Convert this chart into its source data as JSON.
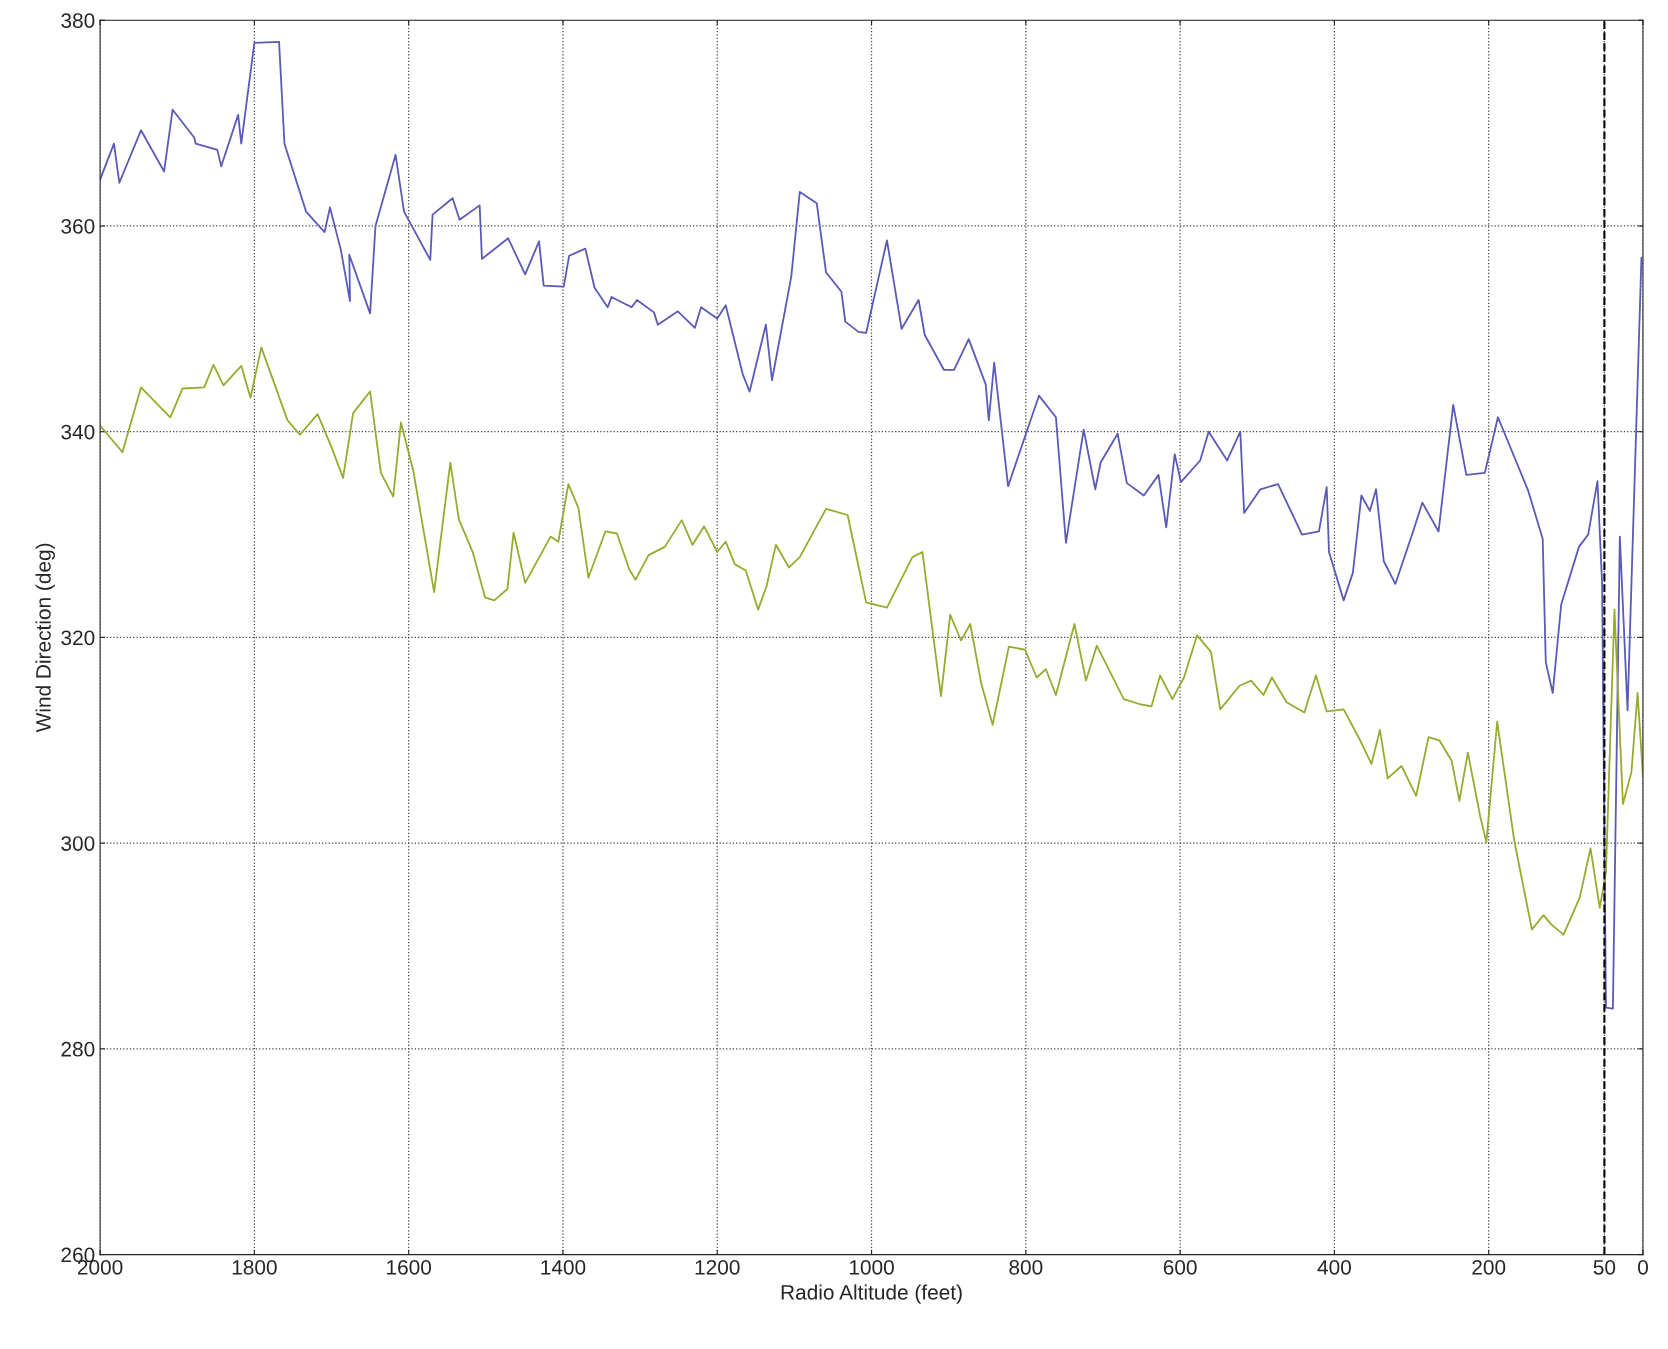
{
  "chart_data": {
    "type": "line",
    "xlabel": "Radio Altitude (feet)",
    "ylabel": "Wind Direction (deg)",
    "xlim": [
      2000,
      0
    ],
    "ylim": [
      260,
      380
    ],
    "xticks": [
      2000,
      1800,
      1600,
      1400,
      1200,
      1000,
      800,
      600,
      400,
      200,
      50,
      0
    ],
    "yticks": [
      260,
      280,
      300,
      320,
      340,
      360,
      380
    ],
    "grid": true,
    "ref_lines": [
      {
        "axis": "x",
        "value": 50,
        "color": "#000000",
        "line_style": "dashed"
      }
    ],
    "series": [
      {
        "color": "#5a5ab8",
        "x": [
          2000,
          1982,
          1975,
          1947,
          1917,
          1906,
          1878,
          1876,
          1848,
          1843,
          1821,
          1817,
          1800,
          1768,
          1761,
          1733,
          1709,
          1702,
          1688,
          1676,
          1677,
          1650,
          1643,
          1617,
          1606,
          1572,
          1569,
          1543,
          1534,
          1508,
          1505,
          1471,
          1449,
          1431,
          1425,
          1399,
          1392,
          1371,
          1359,
          1342,
          1337,
          1311,
          1304,
          1282,
          1277,
          1251,
          1229,
          1221,
          1200,
          1189,
          1167,
          1158,
          1137,
          1129,
          1104,
          1093,
          1071,
          1059,
          1039,
          1034,
          1017,
          1007,
          980,
          961,
          939,
          931,
          906,
          893,
          874,
          852,
          848,
          841,
          823,
          783,
          761,
          748,
          725,
          710,
          703,
          681,
          669,
          647,
          628,
          618,
          607,
          599,
          574,
          563,
          539,
          522,
          517,
          496,
          473,
          442,
          420,
          410,
          407,
          388,
          376,
          365,
          354,
          346,
          336,
          321,
          298,
          286,
          265,
          246,
          229,
          205,
          188,
          149,
          130,
          126,
          117,
          106,
          83,
          71,
          59,
          53,
          48,
          39,
          30,
          20,
          2
        ],
        "values": [
          364.5,
          368,
          364.2,
          369.3,
          365.3,
          371.3,
          368.6,
          368,
          367.4,
          365.8,
          370.8,
          368,
          377.8,
          377.9,
          368,
          361.4,
          359.4,
          361.8,
          357.7,
          352.7,
          357.2,
          351.5,
          360,
          366.9,
          361.4,
          356.7,
          361.1,
          362.7,
          360.6,
          362,
          356.8,
          358.8,
          355.3,
          358.5,
          354.2,
          354.1,
          357.1,
          357.8,
          354,
          352.1,
          353.1,
          352.1,
          352.8,
          351.6,
          350.4,
          351.7,
          350.1,
          352.1,
          351,
          352.3,
          345.6,
          343.9,
          350.4,
          345,
          355.1,
          363.3,
          362.2,
          355.5,
          353.6,
          350.7,
          349.7,
          349.6,
          358.6,
          350,
          352.8,
          349.4,
          346,
          346,
          349,
          344.6,
          341.1,
          346.7,
          334.7,
          343.5,
          341.4,
          329.2,
          340.2,
          334.4,
          337,
          339.8,
          335,
          333.8,
          335.8,
          330.7,
          337.8,
          335.1,
          337.2,
          340,
          337.2,
          340,
          332.1,
          334.4,
          334.9,
          330,
          330.3,
          334.6,
          328.3,
          323.6,
          326.3,
          333.8,
          332.3,
          334.4,
          327.4,
          325.2,
          330.3,
          333.1,
          330.3,
          342.6,
          335.8,
          336,
          341.4,
          334.3,
          329.6,
          317.6,
          314.6,
          323.2,
          328.8,
          330,
          335.2,
          325.3,
          284,
          283.9,
          329.8,
          312.9,
          356.9
        ]
      },
      {
        "color": "#9aaa30",
        "x": [
          2000,
          1971,
          1947,
          1909,
          1893,
          1865,
          1853,
          1840,
          1817,
          1805,
          1791,
          1757,
          1741,
          1718,
          1700,
          1685,
          1672,
          1650,
          1636,
          1620,
          1610,
          1594,
          1567,
          1546,
          1535,
          1517,
          1501,
          1489,
          1472,
          1464,
          1449,
          1416,
          1406,
          1393,
          1380,
          1367,
          1345,
          1330,
          1314,
          1306,
          1289,
          1268,
          1246,
          1232,
          1217,
          1200,
          1189,
          1177,
          1163,
          1147,
          1136,
          1124,
          1107,
          1093,
          1059,
          1031,
          1007,
          980,
          947,
          934,
          910,
          898,
          884,
          872,
          858,
          843,
          822,
          801,
          786,
          774,
          761,
          737,
          722,
          708,
          673,
          652,
          637,
          626,
          610,
          595,
          578,
          560,
          548,
          523,
          508,
          492,
          481,
          462,
          439,
          424,
          410,
          388,
          366,
          352,
          341,
          331,
          313,
          294,
          278,
          264,
          248,
          238,
          227,
          211,
          203,
          189,
          167,
          144,
          129,
          119,
          103,
          82,
          68,
          56,
          48,
          37,
          26,
          15,
          7,
          0
        ],
        "values": [
          340.6,
          338,
          344.3,
          341.4,
          344.2,
          344.3,
          346.5,
          344.5,
          346.4,
          343.3,
          348.2,
          341.1,
          339.7,
          341.7,
          338.5,
          335.5,
          341.8,
          343.9,
          336,
          333.7,
          340.9,
          336.2,
          324.4,
          337,
          331.5,
          328.3,
          323.9,
          323.6,
          324.7,
          330.2,
          325.3,
          329.8,
          329.3,
          334.9,
          332.6,
          325.8,
          330.3,
          330.1,
          326.6,
          325.6,
          328,
          328.8,
          331.4,
          329,
          330.8,
          328.3,
          329.3,
          327.1,
          326.5,
          322.7,
          325,
          329,
          326.8,
          327.8,
          332.5,
          331.9,
          323.4,
          322.9,
          327.8,
          328.3,
          314.3,
          322.2,
          319.7,
          321.3,
          315.6,
          311.5,
          319.1,
          318.8,
          316.1,
          316.9,
          314.4,
          321.3,
          315.8,
          319.2,
          314,
          313.5,
          313.3,
          316.3,
          314,
          316.1,
          320.2,
          318.6,
          313,
          315.3,
          315.8,
          314.4,
          316.1,
          313.7,
          312.7,
          316.3,
          312.8,
          313,
          309.9,
          307.7,
          311,
          306.3,
          307.5,
          304.6,
          310.3,
          310,
          308,
          304.1,
          308.8,
          302.6,
          300.1,
          311.8,
          300.3,
          291.6,
          293,
          292.1,
          291.1,
          294.7,
          299.5,
          293.7,
          297.2,
          322.7,
          303.8,
          306.9,
          314.6,
          306.4
        ]
      }
    ]
  }
}
